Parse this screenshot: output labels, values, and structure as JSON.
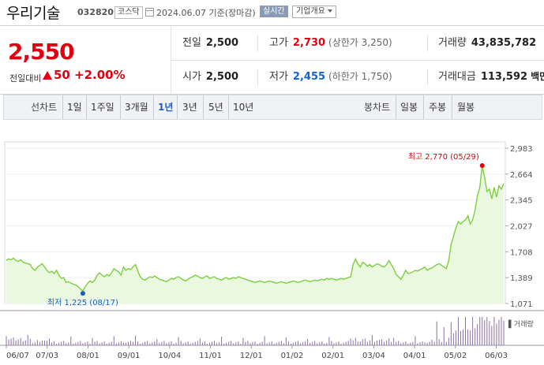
{
  "header": {
    "stock_name": "우리기술",
    "stock_code": "032820",
    "market": "코스닥",
    "date": "2024.06.07",
    "date_suffix": "기준(장마감)",
    "realtime_label": "실시간",
    "company_info_label": "기업개요"
  },
  "quote": {
    "price": "2,550",
    "change_label": "전일대비",
    "change_amount": "50",
    "change_rate": "+2.00%",
    "prev_close_label": "전일",
    "prev_close": "2,500",
    "high_label": "고가",
    "high": "2,730",
    "upper_limit": "(상한가 3,250)",
    "volume_label": "거래량",
    "volume": "43,835,782",
    "open_label": "시가",
    "open": "2,500",
    "low_label": "저가",
    "low": "2,455",
    "lower_limit": "(하한가 1,750)",
    "amount_label": "거래대금",
    "amount": "113,592",
    "amount_unit": "백만"
  },
  "periods": {
    "line_head": "선차트",
    "line_options": [
      "1일",
      "1주일",
      "3개월",
      "1년",
      "3년",
      "5년",
      "10년"
    ],
    "active": "1년",
    "candle_head": "봉차트",
    "candle_options": [
      "일봉",
      "주봉",
      "월봉"
    ]
  },
  "chart_data": {
    "type": "area",
    "y_ticks": [
      "2,983",
      "2,664",
      "2,345",
      "2,027",
      "1,708",
      "1,389",
      "1,071"
    ],
    "ylim": [
      1071,
      2983
    ],
    "x_ticks": [
      "06/07",
      "07/03",
      "08/01",
      "09/01",
      "10/04",
      "11/01",
      "12/01",
      "01/02",
      "02/01",
      "03/04",
      "04/01",
      "05/02",
      "06/03"
    ],
    "high_annotation": "최고 2,770 (05/29)",
    "low_annotation": "최저 1,225 (08/17)",
    "volume_label": "거래량",
    "colors": {
      "line": "#7ccf3f",
      "fill": "#eaf8e0",
      "high": "#e0000f",
      "low": "#1a5cb8",
      "volume": "#8a6fa8"
    },
    "series": [
      {
        "values": [
          1600,
          1620,
          1610,
          1630,
          1600,
          1590,
          1610,
          1580,
          1570,
          1560,
          1550,
          1500,
          1480,
          1520,
          1540,
          1560,
          1520,
          1480,
          1450,
          1470,
          1440,
          1480,
          1420,
          1380,
          1390,
          1330,
          1340,
          1320,
          1310,
          1300,
          1280,
          1250,
          1225,
          1280,
          1320,
          1350,
          1330,
          1360,
          1420,
          1450,
          1420,
          1400,
          1430,
          1410,
          1450,
          1500,
          1480,
          1460,
          1420,
          1520,
          1480,
          1500,
          1490,
          1520,
          1550,
          1470,
          1400,
          1370,
          1360,
          1380,
          1400,
          1390,
          1410,
          1390,
          1370,
          1360,
          1350,
          1340,
          1360,
          1380,
          1370,
          1390,
          1400,
          1380,
          1360,
          1350,
          1370,
          1390,
          1400,
          1420,
          1410,
          1390,
          1380,
          1400,
          1410,
          1380,
          1390,
          1400,
          1380,
          1370,
          1360,
          1380,
          1390,
          1370,
          1380,
          1390,
          1380,
          1400,
          1390,
          1380,
          1370,
          1360,
          1350,
          1340,
          1330,
          1340,
          1350,
          1340,
          1330,
          1340,
          1350,
          1340,
          1330,
          1320,
          1330,
          1340,
          1330,
          1320,
          1330,
          1340,
          1350,
          1340,
          1330,
          1340,
          1350,
          1360,
          1350,
          1340,
          1350,
          1360,
          1350,
          1360,
          1370,
          1360,
          1380,
          1370,
          1380,
          1370,
          1360,
          1370,
          1380,
          1370,
          1380,
          1390,
          1400,
          1550,
          1620,
          1560,
          1520,
          1580,
          1560,
          1530,
          1550,
          1520,
          1540,
          1560,
          1550,
          1530,
          1520,
          1550,
          1600,
          1550,
          1500,
          1430,
          1400,
          1370,
          1420,
          1480,
          1440,
          1450,
          1460,
          1480,
          1470,
          1490,
          1500,
          1520,
          1480,
          1500,
          1510,
          1530,
          1550,
          1560,
          1540,
          1520,
          1500,
          1600,
          1800,
          1900,
          2000,
          2080,
          2050,
          2080,
          2100,
          2150,
          2050,
          2100,
          2220,
          2400,
          2500,
          2770,
          2620,
          2450,
          2480,
          2360,
          2500,
          2380,
          2520,
          2480,
          2550
        ]
      }
    ]
  }
}
